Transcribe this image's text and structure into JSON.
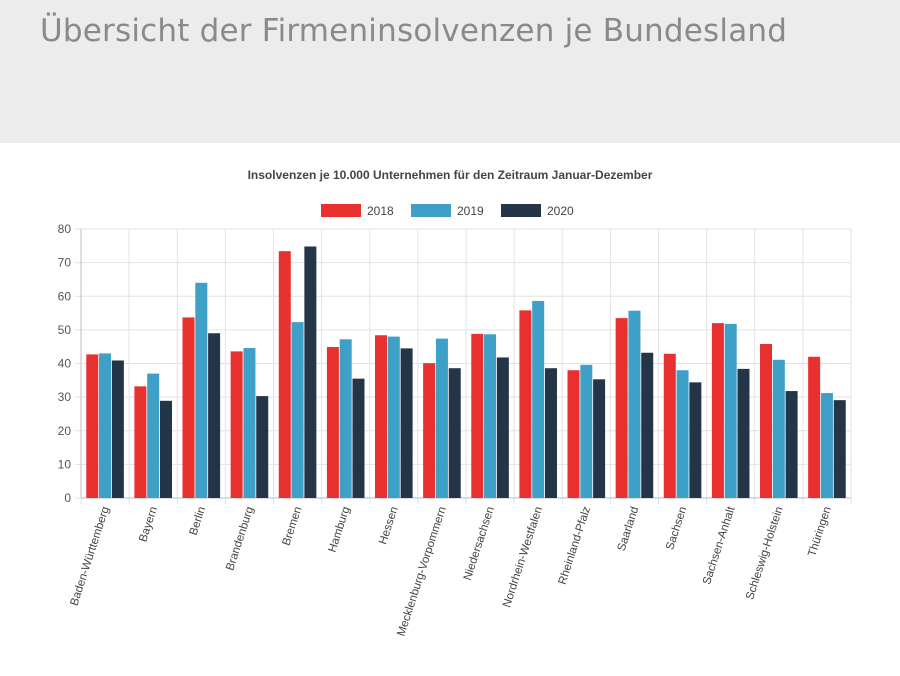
{
  "page": {
    "title": "Übersicht der Firmeninsolvenzen je Bundesland"
  },
  "chart_data": {
    "type": "bar",
    "title": "Insolvenzen je 10.000 Unternehmen für den Zeitraum Januar-Dezember",
    "categories": [
      "Baden-Württemberg",
      "Bayern",
      "Berlin",
      "Brandenburg",
      "Bremen",
      "Hamburg",
      "Hessen",
      "Mecklenburg-Vorpommern",
      "Niedersachsen",
      "Nordrhein-Westfalen",
      "Rheinland-Pfalz",
      "Saarland",
      "Sachsen",
      "Sachsen-Anhalt",
      "Schleswig-Holstein",
      "Thüringen"
    ],
    "series": [
      {
        "name": "2018",
        "color": "#e8302f",
        "values": [
          42.7,
          33.2,
          53.7,
          43.6,
          73.4,
          44.9,
          48.4,
          40.1,
          48.8,
          55.8,
          38.0,
          53.5,
          42.9,
          52.0,
          45.8,
          42.0
        ]
      },
      {
        "name": "2019",
        "color": "#3e9fc7",
        "values": [
          43.0,
          37.0,
          64.0,
          44.6,
          52.3,
          47.2,
          48.0,
          47.4,
          48.7,
          58.6,
          39.6,
          55.7,
          38.0,
          51.8,
          41.1,
          31.2
        ]
      },
      {
        "name": "2020",
        "color": "#253548",
        "values": [
          40.9,
          28.9,
          49.0,
          30.3,
          74.8,
          35.5,
          44.5,
          38.6,
          41.8,
          38.6,
          35.3,
          43.2,
          34.4,
          38.4,
          31.8,
          29.1
        ]
      }
    ],
    "ylim": [
      0,
      80
    ],
    "yticks": [
      0,
      10,
      20,
      30,
      40,
      50,
      60,
      70,
      80
    ],
    "grid": true,
    "legend_position": "top-center",
    "xlabel": "",
    "ylabel": ""
  }
}
